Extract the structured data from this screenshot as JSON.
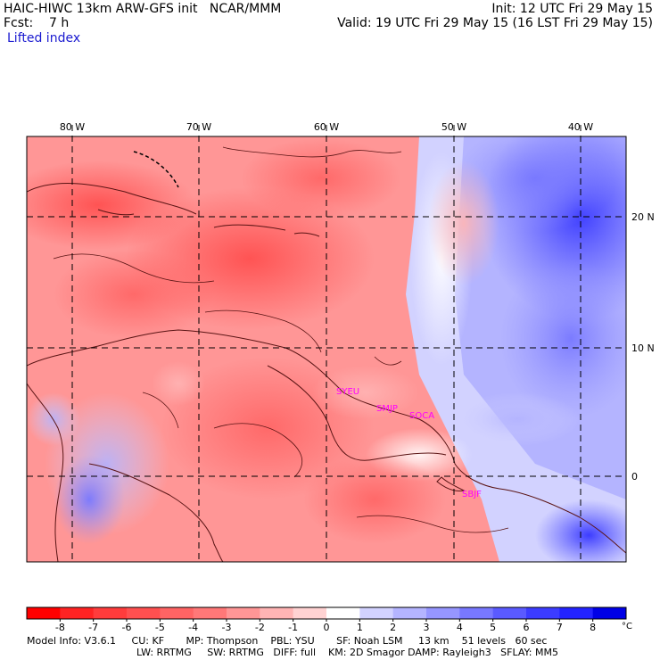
{
  "header": {
    "left_line1": "HAIC-HIWC 13km ARW-GFS init   NCAR/MMM",
    "left_line2": "Fcst:    7 h",
    "field_name": "Lifted index",
    "right_line1": "Init: 12 UTC Fri 29 May 15",
    "right_line2": "Valid: 19 UTC Fri 29 May 15 (16 LST Fri 29 May 15)"
  },
  "map": {
    "lon_labels": [
      "80 W",
      "70 W",
      "60 W",
      "50 W",
      "40 W"
    ],
    "lat_labels": [
      "20 N",
      "10 N",
      "0"
    ],
    "stations": [
      "SYEU",
      "SMJP",
      "SOCA",
      "SBJF"
    ],
    "colors": {
      "land_outline": "#5a1414",
      "grid": "#000000",
      "station": "#ff00ff"
    }
  },
  "colorbar": {
    "tick_labels": [
      "-8",
      "-7",
      "-6",
      "-5",
      "-4",
      "-3",
      "-2",
      "-1",
      "0",
      "1",
      "2",
      "3",
      "4",
      "5",
      "6",
      "7",
      "8"
    ],
    "unit": "°C",
    "colors": [
      "#ff0000",
      "#ff2323",
      "#ff3c3c",
      "#ff5050",
      "#ff6464",
      "#ff7878",
      "#ff9696",
      "#ffb4b4",
      "#ffd2d2",
      "#ffffff",
      "#d2d2ff",
      "#b4b4ff",
      "#9696ff",
      "#7878ff",
      "#5a5aff",
      "#3c3cff",
      "#2323ff",
      "#0000e6"
    ]
  },
  "footer": {
    "line1": "Model Info: V3.6.1     CU: KF       MP: Thompson    PBL: YSU       SF: Noah LSM     13 km    51 levels   60 sec",
    "line2": "LW: RRTMG     SW: RRTMG   DIFF: full    KM: 2D Smagor DAMP: Rayleigh3   SFLAY: MM5"
  }
}
